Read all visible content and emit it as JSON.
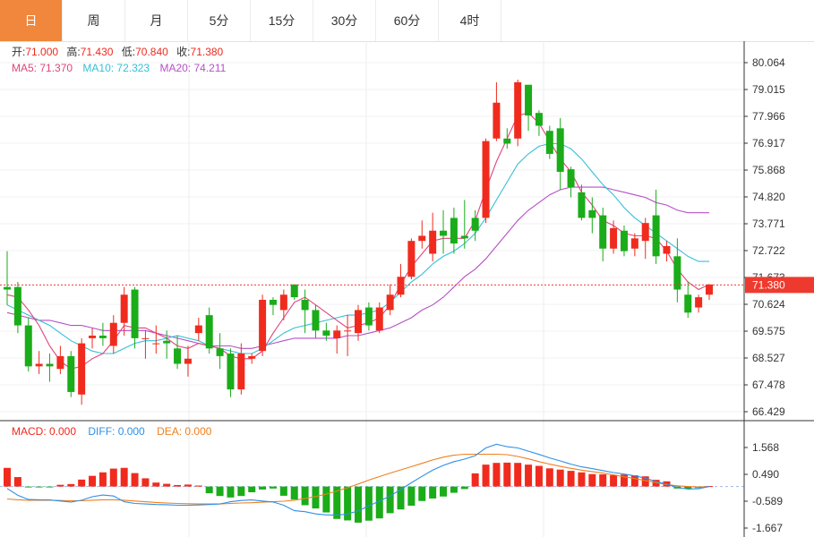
{
  "tabs": [
    {
      "label": "日",
      "active": true
    },
    {
      "label": "周",
      "active": false
    },
    {
      "label": "月",
      "active": false
    },
    {
      "label": "5分",
      "active": false
    },
    {
      "label": "15分",
      "active": false
    },
    {
      "label": "30分",
      "active": false
    },
    {
      "label": "60分",
      "active": false
    },
    {
      "label": "4时",
      "active": false
    }
  ],
  "ohlc_info": {
    "open_label": "开:",
    "open": "71.000",
    "high_label": "高:",
    "high": "71.430",
    "low_label": "低:",
    "low": "70.840",
    "close_label": "收:",
    "close": "71.380"
  },
  "ma_info": {
    "ma5_label": "MA5: ",
    "ma5": "71.370",
    "ma10_label": "MA10: ",
    "ma10": "72.323",
    "ma20_label": "MA20: ",
    "ma20": "74.211"
  },
  "macd_info": {
    "macd_label": "MACD: ",
    "macd": "0.000",
    "diff_label": "DIFF: ",
    "diff": "0.000",
    "dea_label": "DEA: ",
    "dea": "0.000"
  },
  "price_marker": "71.380",
  "colors": {
    "up": "#f02b1e",
    "down": "#1aac19",
    "ma5": "#e0447a",
    "ma10": "#35bfd6",
    "ma20": "#b64fc8",
    "diff": "#2e8fe6",
    "dea": "#f07f1e",
    "accent": "#f0873c",
    "marker": "#ee3a2e"
  },
  "chart_data": [
    {
      "type": "candlestick",
      "y_ticks": [
        "80.064",
        "79.015",
        "77.966",
        "76.917",
        "75.868",
        "74.820",
        "73.771",
        "72.722",
        "71.673",
        "70.624",
        "69.575",
        "68.527",
        "67.478",
        "66.429"
      ],
      "ylim": [
        66.429,
        80.064
      ],
      "last_close": 71.38,
      "candles": [
        [
          71.3,
          71.2,
          72.7,
          70.6
        ],
        [
          71.3,
          69.8,
          71.5,
          69.5
        ],
        [
          69.8,
          68.2,
          70.1,
          68.0
        ],
        [
          68.2,
          68.3,
          68.8,
          67.9
        ],
        [
          68.3,
          68.2,
          68.7,
          67.6
        ],
        [
          68.1,
          68.6,
          69.0,
          67.9
        ],
        [
          68.6,
          67.2,
          68.8,
          67.0
        ],
        [
          67.1,
          69.1,
          69.3,
          66.7
        ],
        [
          69.3,
          69.4,
          69.7,
          68.9
        ],
        [
          69.4,
          69.3,
          69.9,
          69.0
        ],
        [
          69.0,
          69.9,
          70.2,
          68.7
        ],
        [
          69.9,
          71.0,
          71.3,
          69.4
        ],
        [
          71.2,
          69.3,
          71.3,
          68.9
        ],
        [
          69.3,
          69.3,
          69.6,
          68.5
        ],
        [
          69.1,
          69.1,
          69.8,
          68.7
        ],
        [
          69.2,
          69.1,
          69.6,
          68.5
        ],
        [
          68.9,
          68.3,
          69.4,
          68.1
        ],
        [
          68.3,
          68.5,
          69.0,
          67.8
        ],
        [
          69.5,
          69.8,
          70.1,
          69.2
        ],
        [
          70.2,
          68.9,
          70.5,
          68.7
        ],
        [
          68.9,
          68.6,
          69.5,
          68.1
        ],
        [
          68.7,
          67.3,
          68.9,
          67.0
        ],
        [
          67.3,
          68.7,
          69.1,
          67.1
        ],
        [
          68.5,
          68.6,
          68.7,
          68.3
        ],
        [
          68.8,
          70.8,
          71.0,
          68.6
        ],
        [
          70.8,
          70.6,
          70.9,
          70.2
        ],
        [
          70.4,
          71.0,
          71.2,
          70.0
        ],
        [
          71.4,
          70.9,
          71.4,
          70.8
        ],
        [
          70.8,
          70.4,
          71.2,
          69.5
        ],
        [
          70.4,
          69.6,
          70.6,
          69.3
        ],
        [
          69.6,
          69.4,
          69.9,
          69.2
        ],
        [
          69.3,
          69.6,
          69.8,
          68.7
        ],
        [
          69.6,
          69.6,
          70.2,
          68.6
        ],
        [
          69.5,
          70.4,
          70.6,
          69.2
        ],
        [
          70.5,
          69.8,
          70.7,
          69.6
        ],
        [
          69.6,
          70.5,
          70.7,
          69.5
        ],
        [
          70.4,
          71.0,
          71.4,
          70.2
        ],
        [
          71.0,
          71.7,
          72.2,
          70.9
        ],
        [
          71.7,
          73.1,
          73.2,
          71.6
        ],
        [
          73.1,
          73.3,
          73.9,
          72.8
        ],
        [
          72.6,
          73.5,
          74.2,
          72.3
        ],
        [
          73.5,
          73.3,
          74.3,
          72.6
        ],
        [
          74.0,
          73.0,
          74.4,
          72.6
        ],
        [
          73.3,
          73.2,
          74.7,
          72.8
        ],
        [
          74.0,
          73.5,
          74.3,
          73.1
        ],
        [
          74.0,
          77.0,
          77.1,
          73.8
        ],
        [
          77.1,
          78.5,
          79.3,
          77.0
        ],
        [
          77.1,
          76.9,
          77.5,
          76.7
        ],
        [
          77.1,
          79.3,
          79.4,
          76.8
        ],
        [
          79.2,
          78.0,
          79.2,
          77.4
        ],
        [
          78.1,
          77.6,
          78.2,
          77.2
        ],
        [
          77.4,
          76.5,
          77.6,
          76.3
        ],
        [
          77.5,
          75.8,
          77.9,
          75.1
        ],
        [
          75.9,
          75.2,
          76.0,
          74.8
        ],
        [
          75.0,
          74.0,
          75.3,
          73.9
        ],
        [
          74.3,
          74.0,
          74.8,
          73.4
        ],
        [
          74.1,
          72.8,
          74.4,
          72.3
        ],
        [
          72.8,
          73.6,
          73.9,
          72.6
        ],
        [
          73.5,
          72.7,
          73.7,
          72.5
        ],
        [
          72.8,
          73.2,
          73.4,
          72.5
        ],
        [
          73.1,
          73.8,
          74.0,
          72.4
        ],
        [
          74.1,
          72.5,
          75.1,
          72.2
        ],
        [
          72.6,
          72.9,
          73.1,
          72.3
        ],
        [
          72.5,
          71.2,
          73.2,
          70.7
        ],
        [
          71.0,
          70.3,
          71.5,
          70.1
        ],
        [
          70.5,
          70.9,
          71.0,
          70.3
        ],
        [
          71.0,
          71.4,
          71.4,
          70.8
        ]
      ],
      "ma5": [
        71.0,
        70.9,
        70.4,
        69.8,
        69.0,
        68.4,
        68.1,
        68.2,
        68.5,
        68.7,
        69.2,
        69.8,
        69.7,
        69.7,
        69.5,
        69.3,
        69.0,
        68.9,
        69.1,
        69.0,
        68.9,
        68.6,
        68.5,
        68.5,
        68.8,
        69.5,
        70.1,
        70.7,
        70.9,
        70.6,
        70.3,
        70.0,
        69.7,
        69.8,
        69.9,
        70.1,
        70.6,
        71.4,
        72.1,
        72.6,
        73.1,
        73.2,
        73.2,
        73.2,
        73.9,
        75.1,
        76.2,
        77.1,
        78.0,
        78.1,
        77.7,
        77.0,
        76.3,
        75.8,
        75.0,
        74.5,
        73.9,
        73.7,
        73.4,
        73.3,
        73.3,
        73.2,
        72.7,
        72.0,
        71.5,
        71.2,
        71.4
      ],
      "ma10": [
        70.6,
        70.4,
        70.2,
        70.0,
        69.8,
        69.5,
        69.2,
        69.0,
        68.8,
        68.7,
        68.7,
        68.9,
        69.1,
        69.2,
        69.2,
        69.3,
        69.4,
        69.3,
        69.2,
        69.0,
        68.9,
        68.8,
        68.7,
        68.7,
        68.9,
        69.2,
        69.5,
        69.7,
        69.8,
        69.9,
        70.0,
        70.1,
        70.2,
        70.2,
        70.3,
        70.4,
        70.7,
        71.1,
        71.5,
        71.8,
        72.2,
        72.5,
        72.7,
        73.0,
        73.4,
        74.0,
        74.7,
        75.4,
        76.1,
        76.5,
        76.8,
        76.9,
        76.9,
        76.7,
        76.3,
        75.8,
        75.3,
        74.9,
        74.4,
        74.0,
        73.7,
        73.4,
        73.1,
        72.8,
        72.5,
        72.3,
        72.3
      ],
      "ma20": [
        70.3,
        70.2,
        70.1,
        70.0,
        70.0,
        69.9,
        69.8,
        69.8,
        69.7,
        69.6,
        69.6,
        69.6,
        69.6,
        69.6,
        69.5,
        69.4,
        69.3,
        69.2,
        69.1,
        69.0,
        69.0,
        69.0,
        68.9,
        68.9,
        69.0,
        69.1,
        69.2,
        69.3,
        69.3,
        69.3,
        69.3,
        69.3,
        69.4,
        69.4,
        69.5,
        69.6,
        69.7,
        69.9,
        70.1,
        70.4,
        70.6,
        70.9,
        71.3,
        71.7,
        72.0,
        72.4,
        72.9,
        73.4,
        73.9,
        74.3,
        74.6,
        74.9,
        75.1,
        75.2,
        75.2,
        75.2,
        75.2,
        75.1,
        75.0,
        74.9,
        74.8,
        74.6,
        74.5,
        74.3,
        74.2,
        74.2,
        74.2
      ]
    },
    {
      "type": "macd",
      "y_ticks": [
        "1.568",
        "0.490",
        "-0.589",
        "-1.667"
      ],
      "ylim": [
        -1.667,
        1.568
      ],
      "hist": [
        0.75,
        0.38,
        -0.02,
        -0.02,
        -0.03,
        0.07,
        0.1,
        0.28,
        0.43,
        0.57,
        0.72,
        0.75,
        0.54,
        0.33,
        0.16,
        0.11,
        0.06,
        0.08,
        0.04,
        -0.27,
        -0.38,
        -0.44,
        -0.38,
        -0.23,
        -0.12,
        -0.08,
        -0.37,
        -0.52,
        -0.75,
        -0.88,
        -1.04,
        -1.3,
        -1.36,
        -1.45,
        -1.37,
        -1.28,
        -1.07,
        -0.92,
        -0.77,
        -0.58,
        -0.48,
        -0.4,
        -0.25,
        -0.1,
        0.53,
        0.88,
        0.95,
        0.96,
        0.95,
        0.88,
        0.83,
        0.73,
        0.68,
        0.63,
        0.57,
        0.5,
        0.49,
        0.46,
        0.48,
        0.45,
        0.41,
        0.27,
        0.21,
        -0.08,
        -0.09,
        -0.06,
        0.02
      ],
      "diff": [
        -0.08,
        -0.35,
        -0.52,
        -0.53,
        -0.54,
        -0.58,
        -0.62,
        -0.55,
        -0.41,
        -0.34,
        -0.38,
        -0.61,
        -0.68,
        -0.7,
        -0.72,
        -0.73,
        -0.75,
        -0.75,
        -0.74,
        -0.72,
        -0.7,
        -0.61,
        -0.56,
        -0.54,
        -0.58,
        -0.62,
        -0.75,
        -0.97,
        -1.01,
        -1.1,
        -1.14,
        -1.15,
        -1.1,
        -0.98,
        -0.78,
        -0.58,
        -0.38,
        -0.12,
        0.15,
        0.41,
        0.66,
        0.85,
        1.0,
        1.1,
        1.24,
        1.55,
        1.7,
        1.6,
        1.55,
        1.42,
        1.29,
        1.15,
        1.03,
        0.9,
        0.79,
        0.72,
        0.64,
        0.56,
        0.5,
        0.43,
        0.34,
        0.2,
        0.1,
        -0.04,
        -0.1,
        -0.09,
        0.0
      ],
      "dea": [
        -0.5,
        -0.53,
        -0.55,
        -0.55,
        -0.55,
        -0.56,
        -0.57,
        -0.57,
        -0.55,
        -0.53,
        -0.53,
        -0.55,
        -0.58,
        -0.61,
        -0.64,
        -0.66,
        -0.68,
        -0.69,
        -0.7,
        -0.7,
        -0.7,
        -0.68,
        -0.66,
        -0.65,
        -0.63,
        -0.61,
        -0.59,
        -0.55,
        -0.48,
        -0.4,
        -0.3,
        -0.18,
        -0.05,
        0.1,
        0.26,
        0.4,
        0.54,
        0.67,
        0.8,
        0.93,
        1.07,
        1.18,
        1.26,
        1.3,
        1.3,
        1.3,
        1.3,
        1.28,
        1.21,
        1.11,
        1.0,
        0.9,
        0.81,
        0.73,
        0.66,
        0.6,
        0.54,
        0.47,
        0.39,
        0.32,
        0.24,
        0.16,
        0.08,
        0.03,
        0.0,
        -0.02,
        0.0
      ]
    }
  ]
}
